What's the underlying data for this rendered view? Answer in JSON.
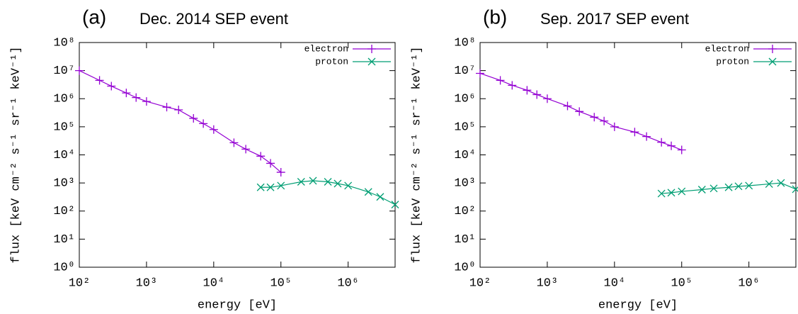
{
  "chart_data": [
    {
      "type": "line",
      "panel_label": "(a)",
      "title": "Dec. 2014 SEP event",
      "x_label": "energy [eV]",
      "y_label": "flux [keV cm⁻² s⁻¹ sr⁻¹ keV⁻¹]",
      "x_scale": "log",
      "y_scale": "log",
      "legend": "upper right",
      "xlim": [
        100,
        5000000
      ],
      "ylim": [
        1,
        100000000
      ],
      "xticks": [
        {
          "value": 100,
          "label": "10²"
        },
        {
          "value": 1000,
          "label": "10³"
        },
        {
          "value": 10000,
          "label": "10⁴"
        },
        {
          "value": 100000,
          "label": "10⁵"
        },
        {
          "value": 1000000,
          "label": "10⁶"
        }
      ],
      "yticks": [
        {
          "value": 1,
          "label": "10⁰"
        },
        {
          "value": 10,
          "label": "10¹"
        },
        {
          "value": 100,
          "label": "10²"
        },
        {
          "value": 1000,
          "label": "10³"
        },
        {
          "value": 10000,
          "label": "10⁴"
        },
        {
          "value": 100000,
          "label": "10⁵"
        },
        {
          "value": 1000000,
          "label": "10⁶"
        },
        {
          "value": 10000000,
          "label": "10⁷"
        },
        {
          "value": 100000000,
          "label": "10⁸"
        }
      ],
      "series": [
        {
          "name": "electron",
          "color": "#9400d3",
          "marker": "plus",
          "x": [
            100,
            200,
            300,
            500,
            700,
            1000,
            2000,
            3000,
            5000,
            7000,
            10000,
            20000,
            30000,
            50000,
            70000,
            100000
          ],
          "values": [
            10000000,
            4500000,
            2800000,
            1600000,
            1100000,
            800000,
            500000,
            400000,
            200000,
            130000,
            80000,
            27000,
            16000,
            9000,
            5000,
            2400
          ]
        },
        {
          "name": "proton",
          "color": "#009e73",
          "marker": "cross",
          "x": [
            50000,
            70000,
            100000,
            200000,
            300000,
            500000,
            700000,
            1000000,
            2000000,
            3000000,
            5000000
          ],
          "values": [
            700,
            700,
            800,
            1100,
            1200,
            1100,
            950,
            800,
            480,
            320,
            170
          ]
        }
      ]
    },
    {
      "type": "line",
      "panel_label": "(b)",
      "title": "Sep. 2017 SEP event",
      "x_label": "energy [eV]",
      "y_label": "flux [keV cm⁻² s⁻¹ sr⁻¹ keV⁻¹]",
      "x_scale": "log",
      "y_scale": "log",
      "legend": "upper right",
      "xlim": [
        100,
        5000000
      ],
      "ylim": [
        1,
        100000000
      ],
      "xticks": [
        {
          "value": 100,
          "label": "10²"
        },
        {
          "value": 1000,
          "label": "10³"
        },
        {
          "value": 10000,
          "label": "10⁴"
        },
        {
          "value": 100000,
          "label": "10⁵"
        },
        {
          "value": 1000000,
          "label": "10⁶"
        }
      ],
      "yticks": [
        {
          "value": 1,
          "label": "10⁰"
        },
        {
          "value": 10,
          "label": "10¹"
        },
        {
          "value": 100,
          "label": "10²"
        },
        {
          "value": 1000,
          "label": "10³"
        },
        {
          "value": 10000,
          "label": "10⁴"
        },
        {
          "value": 100000,
          "label": "10⁵"
        },
        {
          "value": 1000000,
          "label": "10⁶"
        },
        {
          "value": 10000000,
          "label": "10⁷"
        },
        {
          "value": 100000000,
          "label": "10⁸"
        }
      ],
      "series": [
        {
          "name": "electron",
          "color": "#9400d3",
          "marker": "plus",
          "x": [
            100,
            200,
            300,
            500,
            700,
            1000,
            2000,
            3000,
            5000,
            7000,
            10000,
            20000,
            30000,
            50000,
            70000,
            100000
          ],
          "values": [
            8000000,
            4500000,
            3000000,
            2000000,
            1400000,
            1000000,
            550000,
            350000,
            220000,
            160000,
            100000,
            65000,
            45000,
            28000,
            21000,
            15000
          ]
        },
        {
          "name": "proton",
          "color": "#009e73",
          "marker": "cross",
          "x": [
            50000,
            70000,
            100000,
            200000,
            300000,
            500000,
            700000,
            1000000,
            2000000,
            3000000,
            5000000
          ],
          "values": [
            420,
            450,
            500,
            580,
            640,
            700,
            760,
            800,
            920,
            1000,
            600
          ]
        }
      ]
    }
  ]
}
